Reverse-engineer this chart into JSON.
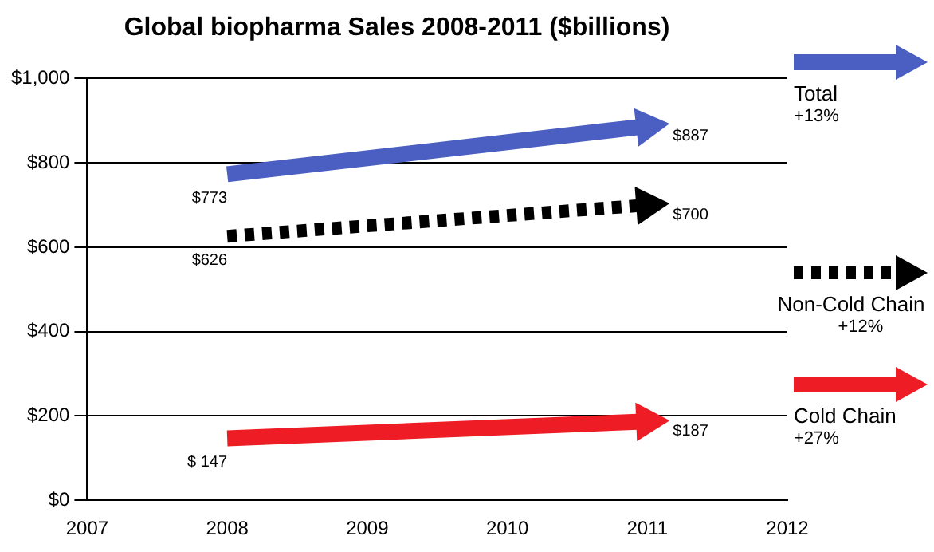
{
  "chart_data": {
    "type": "line",
    "title": "Global biopharma Sales 2008-2011 ($billions)",
    "x": [
      2008,
      2011
    ],
    "series": [
      {
        "name": "Total",
        "color": "#4a5fc1",
        "values": [
          773,
          887
        ],
        "value_labels": [
          "$773",
          "$887"
        ],
        "line_style": "solid"
      },
      {
        "name": "Non-Cold Chain",
        "color": "#000000",
        "values": [
          626,
          700
        ],
        "value_labels": [
          "$626",
          "$700"
        ],
        "line_style": "dotted"
      },
      {
        "name": "Cold Chain",
        "color": "#ee1c25",
        "values": [
          147,
          187
        ],
        "value_labels": [
          "$ 147",
          "$187"
        ],
        "line_style": "solid"
      }
    ],
    "annotations": [
      "+13%",
      "+12%",
      "+27%"
    ],
    "xlim": [
      2007,
      2012
    ],
    "xticks": [
      2007,
      2008,
      2009,
      2010,
      2011,
      2012
    ],
    "ylim": [
      0,
      1000
    ],
    "yticks": [
      {
        "value": 0,
        "label": "$0"
      },
      {
        "value": 200,
        "label": "$200"
      },
      {
        "value": 400,
        "label": "$400"
      },
      {
        "value": 600,
        "label": "$600"
      },
      {
        "value": 800,
        "label": "$800"
      },
      {
        "value": 1000,
        "label": "$1,000"
      }
    ],
    "grid": "y",
    "legend": "right",
    "marker": "triangle"
  }
}
